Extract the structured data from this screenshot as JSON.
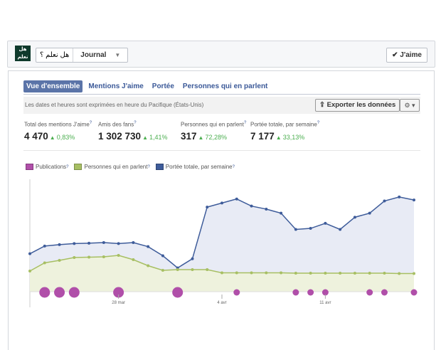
{
  "header": {
    "logo_text": "هل نعلم",
    "page_name": "هل نعلم ؟",
    "section": "Journal",
    "like_label": "J'aime"
  },
  "tabs": [
    {
      "label": "Vue d'ensemble",
      "active": true
    },
    {
      "label": "Mentions J'aime",
      "active": false
    },
    {
      "label": "Portée",
      "active": false
    },
    {
      "label": "Personnes qui en parlent",
      "active": false
    }
  ],
  "infobar": {
    "note": "Les dates et heures sont exprimées en heure du Pacifique (États-Unis)",
    "export_label": "Exporter les données"
  },
  "stats": [
    {
      "label": "Total des mentions J'aime",
      "value": "4 470",
      "change": "0,83%"
    },
    {
      "label": "Amis des fans",
      "value": "1 302 730",
      "change": "1,41%"
    },
    {
      "label": "Personnes qui en parlent",
      "value": "317",
      "change": "72,28%"
    },
    {
      "label": "Portée totale, par semaine",
      "value": "7 177",
      "change": "33,13%"
    }
  ],
  "colors": {
    "publications": "#b04fa9",
    "parlent": "#a7bf63",
    "portee": "#3e5c9a"
  },
  "chart_data": {
    "type": "line",
    "x_ticks": [
      "28 mar",
      "4 avr",
      "11 avr"
    ],
    "series": [
      {
        "name": "Publications",
        "kind": "bubble",
        "values": [
          0,
          2,
          2,
          2,
          0,
          0,
          2,
          0,
          0,
          0,
          2,
          0,
          0,
          0,
          1,
          0,
          0,
          0,
          1,
          1,
          1,
          0,
          0,
          1,
          1,
          0,
          1
        ]
      },
      {
        "name": "Personnes qui en parlent",
        "kind": "area",
        "values": [
          40,
          63,
          70,
          78,
          79,
          80,
          84,
          72,
          55,
          42,
          44,
          44,
          44,
          35,
          35,
          35,
          35,
          35,
          34,
          34,
          34,
          34,
          34,
          34,
          34,
          33,
          33
        ]
      },
      {
        "name": "Portée totale, par semaine",
        "kind": "area",
        "values": [
          310,
          348,
          355,
          360,
          362,
          365,
          360,
          365,
          345,
          300,
          240,
          285,
          540,
          560,
          580,
          545,
          530,
          510,
          430,
          435,
          460,
          430,
          490,
          510,
          570,
          590,
          575
        ]
      }
    ]
  }
}
